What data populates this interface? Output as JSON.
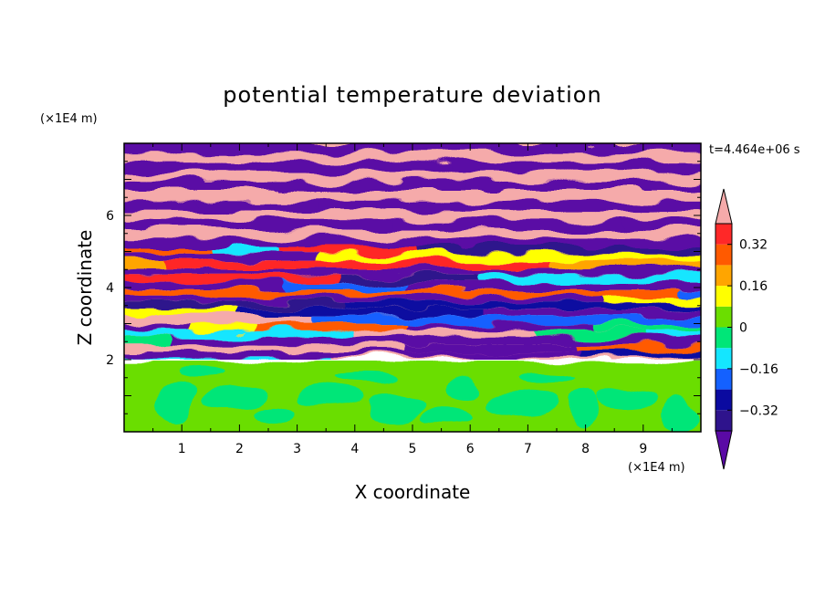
{
  "chart_data": {
    "type": "heatmap",
    "title": "potential temperature deviation",
    "xlabel": "X coordinate",
    "ylabel": "Z coordinate",
    "x_unit": "(×1E4 m)",
    "y_unit": "(×1E4 m)",
    "time_label": "t=4.464e+06 s",
    "xlim": [
      0,
      10
    ],
    "ylim": [
      0,
      8
    ],
    "x_ticks": [
      "1",
      "2",
      "3",
      "4",
      "5",
      "6",
      "7",
      "8",
      "9"
    ],
    "y_ticks": [
      "2",
      "4",
      "6"
    ],
    "colorbar": {
      "levels": [
        -0.4,
        -0.32,
        -0.24,
        -0.16,
        -0.08,
        0,
        0.08,
        0.16,
        0.24,
        0.32,
        0.4
      ],
      "labels": [
        "0.32",
        "0.16",
        "0",
        "−0.16",
        "−0.32"
      ],
      "label_values": [
        0.32,
        0.16,
        0,
        -0.16,
        -0.32
      ],
      "colors_bottom_to_top": [
        "#2e138c",
        "#0a0aa0",
        "#1461ff",
        "#14e6ff",
        "#00e678",
        "#6bde00",
        "#ffff00",
        "#ffa500",
        "#ff5a00",
        "#ff2828"
      ],
      "under_color": "#5a0aa5",
      "over_color": "#f5aaaa"
    },
    "regions": {
      "lower_layer_z": [
        0,
        2
      ],
      "lower_layer_values": "mostly 0 to 0.08 (green) with patches of -0.08 to 0",
      "upper_layer_z": [
        2,
        8
      ],
      "upper_layer_values": "alternating bands of >0.4 and <-0.4 with mixed intermediate values near z=2-5"
    }
  }
}
